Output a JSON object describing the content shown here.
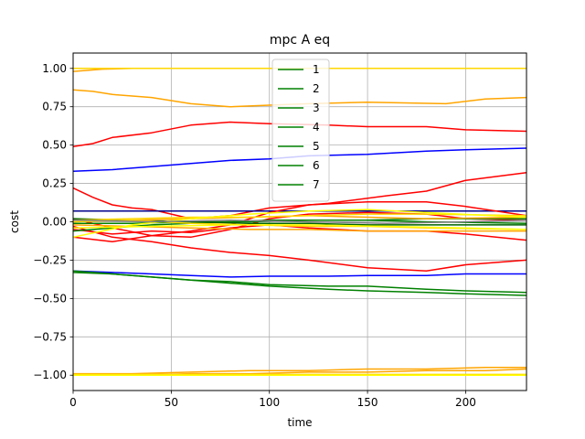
{
  "chart_data": {
    "type": "line",
    "title": "mpc A eq",
    "xlabel": "time",
    "ylabel": "cost",
    "xlim": [
      0,
      231
    ],
    "ylim": [
      -1.1,
      1.1
    ],
    "xticks": [
      0,
      50,
      100,
      150,
      200
    ],
    "yticks": [
      -1.0,
      -0.75,
      -0.5,
      -0.25,
      0.0,
      0.25,
      0.5,
      0.75,
      1.0
    ],
    "xtick_labels": [
      "0",
      "50",
      "100",
      "150",
      "200"
    ],
    "ytick_labels": [
      "−1.00",
      "−0.75",
      "−0.50",
      "−0.25",
      "0.00",
      "0.25",
      "0.50",
      "0.75",
      "1.00"
    ],
    "grid": true,
    "legend_position": "top-center",
    "legend": [
      {
        "label": "1",
        "color": "#008000"
      },
      {
        "label": "2",
        "color": "#008000"
      },
      {
        "label": "3",
        "color": "#008000"
      },
      {
        "label": "4",
        "color": "#008000"
      },
      {
        "label": "5",
        "color": "#008000"
      },
      {
        "label": "6",
        "color": "#008000"
      },
      {
        "label": "7",
        "color": "#008000"
      }
    ],
    "series": [
      {
        "color": "#ffa500",
        "x": [
          0,
          15,
          30,
          231
        ],
        "y": [
          0.98,
          0.995,
          1.0,
          1.0
        ]
      },
      {
        "color": "#ffd700",
        "x": [
          0,
          231
        ],
        "y": [
          1.0,
          1.0
        ]
      },
      {
        "color": "#ffa500",
        "x": [
          0,
          10,
          20,
          40,
          60,
          80,
          100,
          120,
          150,
          190,
          210,
          231
        ],
        "y": [
          0.86,
          0.85,
          0.83,
          0.81,
          0.77,
          0.75,
          0.76,
          0.77,
          0.78,
          0.77,
          0.8,
          0.81
        ]
      },
      {
        "color": "#ff0000",
        "x": [
          0,
          10,
          20,
          40,
          60,
          80,
          100,
          130,
          150,
          180,
          200,
          231
        ],
        "y": [
          0.49,
          0.51,
          0.55,
          0.58,
          0.63,
          0.65,
          0.64,
          0.63,
          0.62,
          0.62,
          0.6,
          0.59
        ]
      },
      {
        "color": "#0000ff",
        "x": [
          0,
          20,
          40,
          60,
          80,
          100,
          120,
          150,
          180,
          200,
          231
        ],
        "y": [
          0.33,
          0.34,
          0.36,
          0.38,
          0.4,
          0.41,
          0.43,
          0.44,
          0.46,
          0.47,
          0.48
        ]
      },
      {
        "color": "#ff0000",
        "x": [
          0,
          10,
          20,
          30,
          40,
          60,
          80,
          100,
          130,
          160,
          180,
          200,
          231
        ],
        "y": [
          0.22,
          0.16,
          0.11,
          0.09,
          0.08,
          0.02,
          0.04,
          0.09,
          0.12,
          0.17,
          0.2,
          0.27,
          0.32
        ]
      },
      {
        "color": "#00008b",
        "x": [
          0,
          231
        ],
        "y": [
          0.07,
          0.07
        ]
      },
      {
        "color": "#ff0000",
        "x": [
          0,
          20,
          40,
          60,
          80,
          100,
          120,
          150,
          180,
          200,
          231
        ],
        "y": [
          -0.1,
          -0.13,
          -0.09,
          -0.06,
          -0.02,
          0.06,
          0.11,
          0.13,
          0.13,
          0.1,
          0.04
        ]
      },
      {
        "color": "#ff0000",
        "x": [
          0,
          20,
          40,
          60,
          80,
          100,
          120,
          150,
          180,
          200,
          231
        ],
        "y": [
          -0.03,
          -0.1,
          -0.13,
          -0.17,
          -0.2,
          -0.22,
          -0.25,
          -0.3,
          -0.32,
          -0.28,
          -0.25
        ]
      },
      {
        "color": "#ff0000",
        "x": [
          0,
          20,
          40,
          60,
          80,
          100,
          120,
          150,
          180,
          200,
          231
        ],
        "y": [
          -0.05,
          -0.08,
          -0.06,
          -0.07,
          -0.04,
          -0.02,
          -0.04,
          -0.06,
          -0.06,
          -0.08,
          -0.12
        ]
      },
      {
        "color": "#ff0000",
        "x": [
          0,
          20,
          40,
          60,
          80,
          100,
          120,
          150,
          180,
          200,
          231
        ],
        "y": [
          0.02,
          -0.04,
          -0.09,
          -0.1,
          -0.05,
          0.02,
          0.05,
          0.06,
          0.05,
          0.02,
          0.01
        ]
      },
      {
        "color": "#008000",
        "x": [
          0,
          20,
          40,
          60,
          80,
          100,
          130,
          150,
          180,
          200,
          231
        ],
        "y": [
          -0.06,
          -0.04,
          -0.02,
          -0.01,
          0.0,
          0.01,
          0.01,
          0.01,
          0.02,
          0.02,
          0.02
        ]
      },
      {
        "color": "#008000",
        "x": [
          0,
          30,
          60,
          90,
          120,
          150,
          180,
          231
        ],
        "y": [
          -0.01,
          -0.01,
          0.0,
          0.0,
          0.01,
          0.01,
          0.0,
          -0.01
        ]
      },
      {
        "color": "#006400",
        "x": [
          0,
          30,
          60,
          90,
          120,
          150,
          180,
          231
        ],
        "y": [
          0.02,
          0.01,
          0.0,
          -0.01,
          -0.01,
          -0.02,
          -0.02,
          -0.02
        ]
      },
      {
        "color": "#ffa500",
        "x": [
          0,
          30,
          60,
          90,
          120,
          150,
          180,
          231
        ],
        "y": [
          0.0,
          0.01,
          0.02,
          0.03,
          0.04,
          0.03,
          0.02,
          0.03
        ]
      },
      {
        "color": "#ffa500",
        "x": [
          0,
          30,
          60,
          90,
          120,
          150,
          180,
          231
        ],
        "y": [
          -0.02,
          -0.03,
          -0.04,
          -0.05,
          -0.05,
          -0.06,
          -0.06,
          -0.06
        ]
      },
      {
        "color": "#ffd700",
        "x": [
          0,
          30,
          60,
          90,
          120,
          150,
          180,
          231
        ],
        "y": [
          0.0,
          0.01,
          -0.01,
          -0.02,
          -0.03,
          -0.03,
          -0.04,
          -0.05
        ]
      },
      {
        "color": "#ffd700",
        "x": [
          0,
          30,
          60,
          90,
          120,
          150,
          180,
          231
        ],
        "y": [
          0.01,
          0.02,
          0.03,
          0.03,
          0.04,
          0.05,
          0.05,
          0.04
        ]
      },
      {
        "color": "#ffff00",
        "x": [
          0,
          30,
          60,
          90,
          120,
          150,
          180,
          231
        ],
        "y": [
          -0.1,
          -0.02,
          0.02,
          0.05,
          0.07,
          0.08,
          0.06,
          0.03
        ]
      },
      {
        "color": "#ffff00",
        "x": [
          0,
          40,
          80,
          120,
          160,
          200,
          231
        ],
        "y": [
          -0.04,
          -0.03,
          -0.02,
          -0.02,
          -0.03,
          -0.04,
          -0.05
        ]
      },
      {
        "color": "#808080",
        "x": [
          0,
          40,
          80,
          120,
          160,
          200,
          231
        ],
        "y": [
          0.01,
          0.0,
          0.01,
          0.0,
          -0.01,
          0.0,
          0.01
        ]
      },
      {
        "color": "#0000ff",
        "x": [
          0,
          20,
          40,
          60,
          80,
          100,
          130,
          150,
          180,
          200,
          231
        ],
        "y": [
          -0.32,
          -0.33,
          -0.34,
          -0.35,
          -0.36,
          -0.355,
          -0.355,
          -0.35,
          -0.35,
          -0.34,
          -0.34
        ]
      },
      {
        "color": "#008000",
        "x": [
          0,
          20,
          40,
          60,
          80,
          100,
          130,
          150,
          180,
          200,
          231
        ],
        "y": [
          -0.32,
          -0.34,
          -0.36,
          -0.38,
          -0.39,
          -0.41,
          -0.42,
          -0.42,
          -0.44,
          -0.45,
          -0.46
        ]
      },
      {
        "color": "#008000",
        "x": [
          0,
          20,
          40,
          60,
          80,
          100,
          130,
          150,
          180,
          200,
          231
        ],
        "y": [
          -0.33,
          -0.34,
          -0.36,
          -0.38,
          -0.4,
          -0.42,
          -0.44,
          -0.45,
          -0.46,
          -0.47,
          -0.48
        ]
      },
      {
        "color": "#ffa500",
        "x": [
          0,
          30,
          60,
          90,
          120,
          150,
          180,
          210,
          231
        ],
        "y": [
          -0.99,
          -0.99,
          -0.98,
          -0.97,
          -0.97,
          -0.96,
          -0.96,
          -0.95,
          -0.95
        ]
      },
      {
        "color": "#ffa500",
        "x": [
          0,
          30,
          60,
          90,
          120,
          150,
          180,
          210,
          231
        ],
        "y": [
          -1.0,
          -1.0,
          -0.99,
          -0.99,
          -0.98,
          -0.98,
          -0.97,
          -0.97,
          -0.96
        ]
      },
      {
        "color": "#ffd700",
        "x": [
          0,
          231
        ],
        "y": [
          -0.995,
          -0.995
        ]
      },
      {
        "color": "#ffff00",
        "x": [
          0,
          231
        ],
        "y": [
          -1.0,
          -1.0
        ]
      }
    ]
  }
}
